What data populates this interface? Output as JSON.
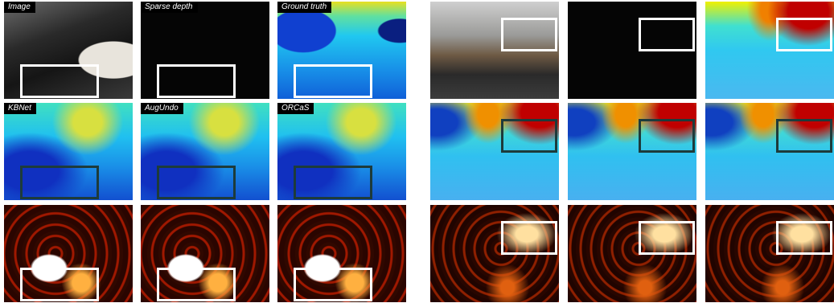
{
  "labels": [
    "Image",
    "Sparse depth",
    "Ground truth",
    "KBNet",
    "AugUndo",
    "ORCaS"
  ]
}
